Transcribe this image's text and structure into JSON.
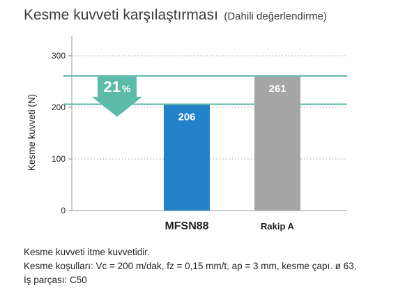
{
  "header": {
    "title": "Kesme kuvveti karşılaştırması",
    "subtitle": "(Dahili değerlendirme)"
  },
  "chart_data": {
    "type": "bar",
    "ylabel": "Kesme kuvveti (N)",
    "xlabel": "",
    "ylim": [
      0,
      300
    ],
    "yticks": [
      0,
      100,
      200,
      300
    ],
    "grid": true,
    "categories": [
      "MFSN88",
      "Rakip A"
    ],
    "values": [
      206,
      261
    ],
    "colors": [
      "#2381c8",
      "#a6a6a6"
    ],
    "reference_color": "#5bbaa8",
    "annotation": {
      "number": "21",
      "unit": "%"
    }
  },
  "notes": {
    "line1": "Kesme kuvveti itme kuvvetidir.",
    "line2": "Kesme koşulları: Vc = 200 m/dak, fz = 0,15 mm/t, ap = 3 mm, kesme çapı. ø 63,",
    "line3": "İş parçası: C50"
  }
}
